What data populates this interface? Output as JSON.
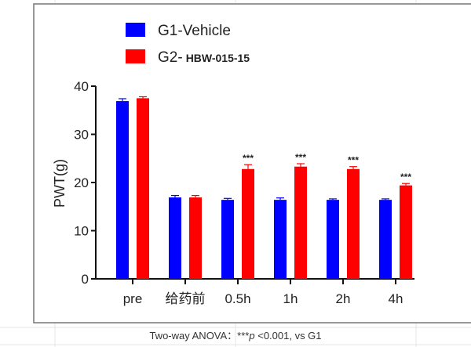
{
  "chart_data": {
    "type": "bar",
    "title": "",
    "xlabel": "",
    "ylabel": "PWT(g)",
    "ylim": [
      0,
      40
    ],
    "yticks": [
      0,
      10,
      20,
      30,
      40
    ],
    "categories": [
      "pre",
      "给药前",
      "0.5h",
      "1h",
      "2h",
      "4h"
    ],
    "series": [
      {
        "name": "G1-Vehicle",
        "color": "#0000ff",
        "values": [
          36.9,
          16.9,
          16.4,
          16.4,
          16.4,
          16.4
        ],
        "errors": [
          0.5,
          0.4,
          0.3,
          0.4,
          0.2,
          0.2
        ]
      },
      {
        "name": "G2- HBW-015-15",
        "name_prefix": "G2-",
        "name_suffix": "HBW-015-15",
        "color": "#ff0000",
        "values": [
          37.5,
          16.9,
          22.8,
          23.3,
          22.8,
          19.4
        ],
        "errors": [
          0.3,
          0.4,
          0.9,
          0.6,
          0.5,
          0.4
        ]
      }
    ],
    "annotations": [
      "",
      "",
      "***",
      "***",
      "***",
      "***"
    ],
    "legend_position": "top-left",
    "grid": false,
    "caption": "Two-way ANOVA：***p <0.001, vs G1",
    "caption_parts": {
      "pre": "Two-way ANOVA：***",
      "p": "p",
      "post": " <0.001, vs G1"
    }
  }
}
